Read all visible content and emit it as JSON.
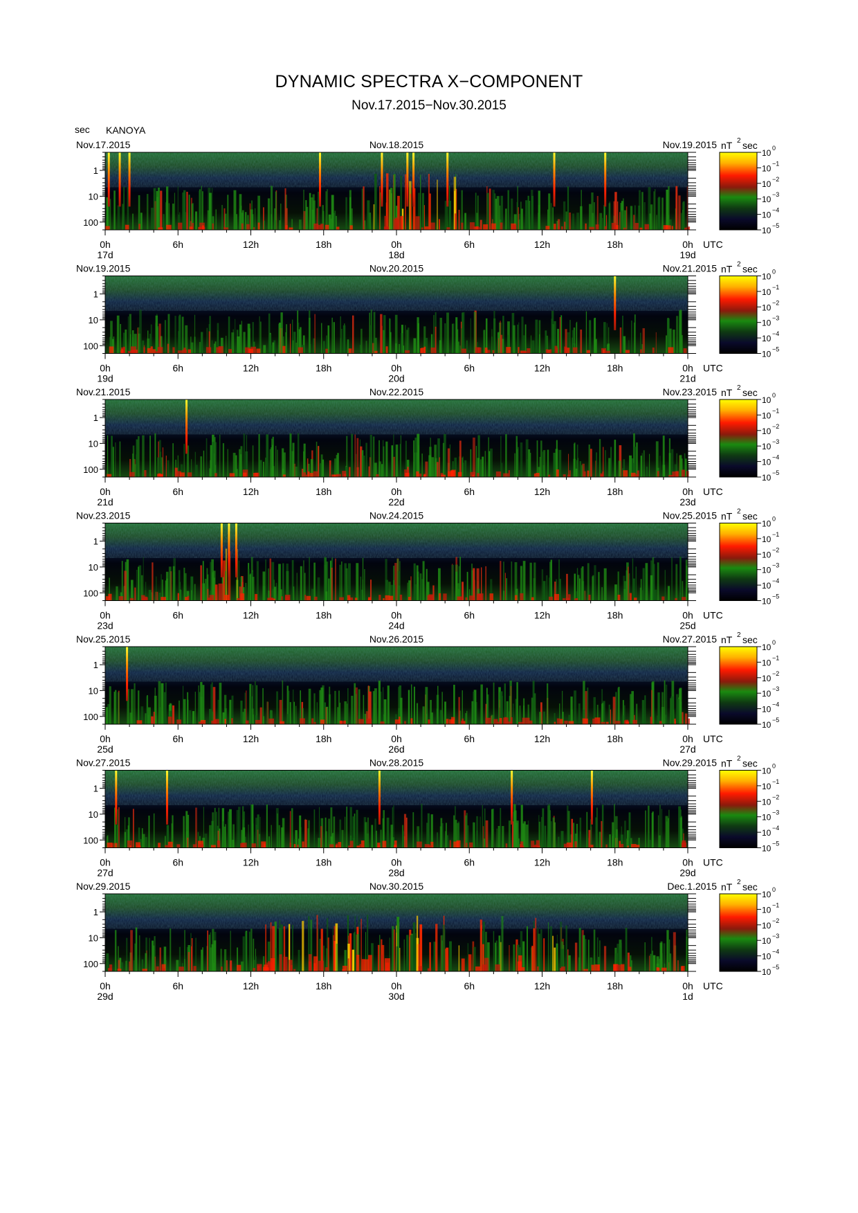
{
  "header": {
    "title": "DYNAMIC SPECTRA X−COMPONENT",
    "subtitle": "Nov.17.2015−Nov.30.2015",
    "y_unit": "sec",
    "station": "KANOYA"
  },
  "colorbar": {
    "unit": "nT",
    "unit_power": "2",
    "unit_suffix": "sec",
    "ticks": [
      {
        "base": "10",
        "exp": "0"
      },
      {
        "base": "10",
        "exp": "−1"
      },
      {
        "base": "10",
        "exp": "−2"
      },
      {
        "base": "10",
        "exp": "−3"
      },
      {
        "base": "10",
        "exp": "−4"
      },
      {
        "base": "10",
        "exp": "−5"
      }
    ],
    "colors": [
      "#ffff00",
      "#ffa500",
      "#ff1a00",
      "#8b1a10",
      "#1a8a10",
      "#103010",
      "#0a0a28",
      "#000000"
    ]
  },
  "chart_data": {
    "type": "heatmap",
    "y_axis": {
      "unit": "sec",
      "scale": "log",
      "ticks": [
        "1",
        "10",
        "100"
      ],
      "range": [
        0.2,
        200
      ]
    },
    "x_tick_labels": [
      "0h",
      "6h",
      "12h",
      "18h",
      "0h",
      "6h",
      "12h",
      "18h",
      "0h"
    ],
    "x_unit": "UTC",
    "color_scale": {
      "unit": "nT²sec",
      "scale": "log",
      "range": [
        1e-05,
        1
      ]
    },
    "panels": [
      {
        "date_left": "Nov.17.2015",
        "date_mid": "Nov.18.2015",
        "date_right": "Nov.19.2015",
        "day_left": "17d",
        "day_mid": "18d",
        "day_right": "19d",
        "spikes": [
          {
            "hour": 0.3,
            "min_period": 0.2
          },
          {
            "hour": 1.2,
            "min_period": 0.2
          },
          {
            "hour": 2.0,
            "min_period": 0.2
          },
          {
            "hour": 17.7,
            "min_period": 0.2
          },
          {
            "hour": 22.8,
            "min_period": 0.2
          },
          {
            "hour": 24.9,
            "min_period": 0.2
          },
          {
            "hour": 25.4,
            "min_period": 0.2
          },
          {
            "hour": 28.2,
            "min_period": 0.2
          },
          {
            "hour": 37.0,
            "min_period": 0.2
          },
          {
            "hour": 41.2,
            "min_period": 0.2
          }
        ],
        "active_hours": [
          [
            22,
            29
          ]
        ]
      },
      {
        "date_left": "Nov.19.2015",
        "date_mid": "Nov.20.2015",
        "date_right": "Nov.21.2015",
        "day_left": "19d",
        "day_mid": "20d",
        "day_right": "21d",
        "spikes": [
          {
            "hour": 42.0,
            "min_period": 0.2
          }
        ],
        "active_hours": []
      },
      {
        "date_left": "Nov.21.2015",
        "date_mid": "Nov.22.2015",
        "date_right": "Nov.23.2015",
        "day_left": "21d",
        "day_mid": "22d",
        "day_right": "23d",
        "spikes": [
          {
            "hour": 6.7,
            "min_period": 0.2
          }
        ],
        "active_hours": []
      },
      {
        "date_left": "Nov.23.2015",
        "date_mid": "Nov.24.2015",
        "date_right": "Nov.25.2015",
        "day_left": "23d",
        "day_mid": "24d",
        "day_right": "25d",
        "spikes": [
          {
            "hour": 9.6,
            "min_period": 0.2
          },
          {
            "hour": 10.2,
            "min_period": 0.2
          },
          {
            "hour": 10.8,
            "min_period": 0.2
          }
        ],
        "active_hours": [
          [
            9,
            11
          ]
        ]
      },
      {
        "date_left": "Nov.25.2015",
        "date_mid": "Nov.26.2015",
        "date_right": "Nov.27.2015",
        "day_left": "25d",
        "day_mid": "26d",
        "day_right": "27d",
        "spikes": [
          {
            "hour": 1.8,
            "min_period": 0.2
          }
        ],
        "active_hours": []
      },
      {
        "date_left": "Nov.27.2015",
        "date_mid": "Nov.28.2015",
        "date_right": "Nov.29.2015",
        "day_left": "27d",
        "day_mid": "28d",
        "day_right": "29d",
        "spikes": [
          {
            "hour": 0.9,
            "min_period": 0.2
          },
          {
            "hour": 5.1,
            "min_period": 0.2
          },
          {
            "hour": 22.6,
            "min_period": 0.2
          },
          {
            "hour": 33.5,
            "min_period": 0.2
          },
          {
            "hour": 40.1,
            "min_period": 0.2
          }
        ],
        "active_hours": []
      },
      {
        "date_left": "Nov.29.2015",
        "date_mid": "Nov.30.2015",
        "date_right": "Dec.1.2015",
        "day_left": "29d",
        "day_mid": "30d",
        "day_right": "1d",
        "spikes": [],
        "active_hours": [
          [
            13,
            38
          ]
        ]
      }
    ]
  }
}
